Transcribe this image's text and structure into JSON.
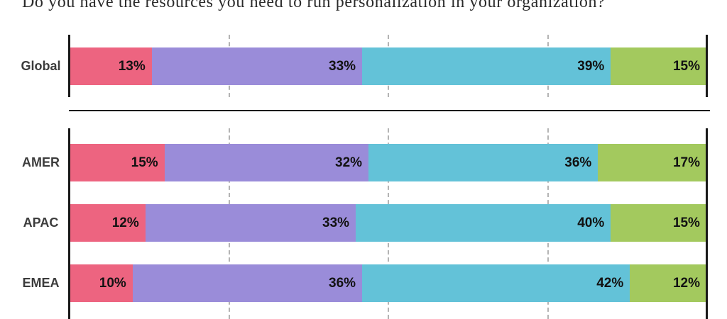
{
  "title": "Do you have the resources you need to run personalization in your organization?",
  "chart_data": {
    "type": "bar",
    "stacked": true,
    "orientation": "horizontal",
    "unit": "%",
    "xlim": [
      0,
      100
    ],
    "gridlines_pct": [
      25,
      50,
      75
    ],
    "grid": "dashed vertical at quartiles",
    "segment_colors": [
      "#ed6480",
      "#9a8cd9",
      "#63c2d8",
      "#a3c95e"
    ],
    "axis_color": "#191919",
    "gridline_color": "#b4b4b4",
    "divider_color": "#1a1a1a",
    "groups": [
      {
        "name": "global-panel",
        "rows": [
          {
            "category": "Global",
            "values": [
              13,
              33,
              39,
              15
            ]
          }
        ]
      },
      {
        "name": "regions-panel",
        "rows": [
          {
            "category": "AMER",
            "values": [
              15,
              32,
              36,
              17
            ]
          },
          {
            "category": "APAC",
            "values": [
              12,
              33,
              40,
              15
            ]
          },
          {
            "category": "EMEA",
            "values": [
              10,
              36,
              42,
              12
            ]
          }
        ]
      }
    ]
  }
}
